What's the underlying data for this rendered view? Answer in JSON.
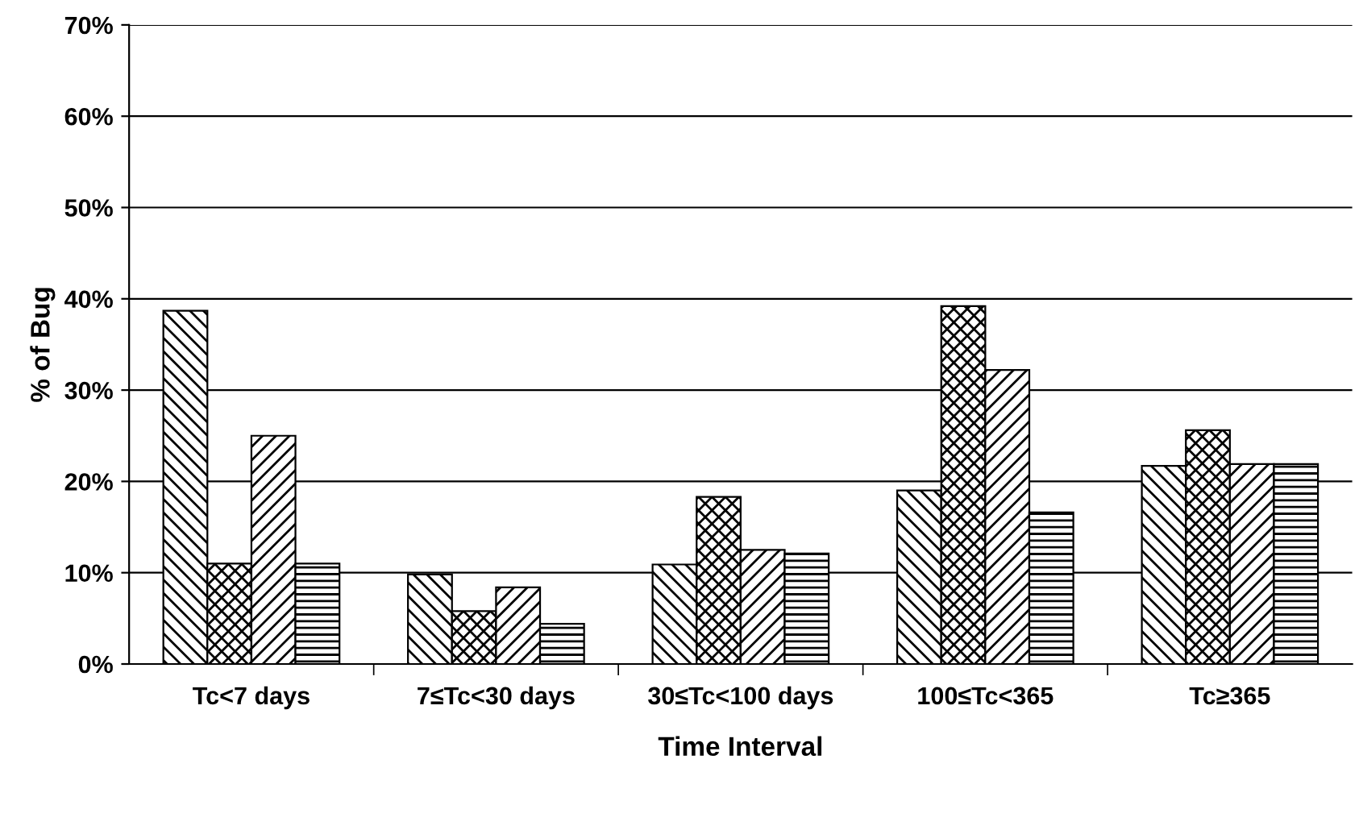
{
  "chart_data": {
    "type": "bar",
    "xlabel": "Time Interval",
    "ylabel": "% of Bug",
    "categories": [
      "Tc<7 days",
      "7≤Tc<30 days",
      "30≤Tc<100 days",
      "100≤Tc<365",
      "Tc≥365"
    ],
    "series": [
      {
        "color": "#000000",
        "values": [
          38.7,
          9.8,
          10.9,
          19.0,
          21.7
        ]
      },
      {
        "color": "#000000",
        "values": [
          11.0,
          5.8,
          18.3,
          39.2,
          25.6
        ]
      },
      {
        "color": "#000000",
        "values": [
          25.0,
          8.4,
          12.5,
          32.2,
          21.9
        ]
      },
      {
        "color": "#000000",
        "values": [
          11.0,
          4.4,
          12.1,
          16.6,
          21.9
        ]
      }
    ],
    "ylim": [
      0,
      70
    ],
    "yticks": [
      {
        "value": 0,
        "label": "0%"
      },
      {
        "value": 10,
        "label": "10%"
      },
      {
        "value": 20,
        "label": "20%"
      },
      {
        "value": 30,
        "label": "30%"
      },
      {
        "value": 40,
        "label": "40%"
      },
      {
        "value": 50,
        "label": "50%"
      },
      {
        "value": 60,
        "label": "60%"
      },
      {
        "value": 70,
        "label": "70%"
      }
    ],
    "grid": "y"
  }
}
